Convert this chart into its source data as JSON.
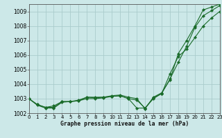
{
  "title": "Graphe pression niveau de la mer (hPa)",
  "background_color": "#cce8e8",
  "grid_color": "#aacccc",
  "line_color": "#1a6b2a",
  "xlim": [
    0,
    23
  ],
  "ylim": [
    1002,
    1009.5
  ],
  "xticks": [
    0,
    1,
    2,
    3,
    4,
    5,
    6,
    7,
    8,
    9,
    10,
    11,
    12,
    13,
    14,
    15,
    16,
    17,
    18,
    19,
    20,
    21,
    22,
    23
  ],
  "yticks": [
    1002,
    1003,
    1004,
    1005,
    1006,
    1007,
    1008,
    1009
  ],
  "series": [
    [
      1003.0,
      1002.6,
      1002.4,
      1002.4,
      1002.8,
      1002.8,
      1002.9,
      1003.1,
      1003.1,
      1003.1,
      1003.2,
      1003.25,
      1003.1,
      1003.0,
      1002.3,
      1003.1,
      1003.4,
      1004.3,
      1006.1,
      1007.0,
      1008.0,
      1009.1,
      1009.3,
      1009.5
    ],
    [
      1003.0,
      1002.6,
      1002.4,
      1002.5,
      1002.8,
      1002.8,
      1002.85,
      1003.1,
      1003.05,
      1003.1,
      1003.15,
      1003.2,
      1003.0,
      1002.9,
      1002.35,
      1003.05,
      1003.35,
      1004.35,
      1005.5,
      1006.6,
      1007.9,
      1008.7,
      1009.05,
      1009.4
    ],
    [
      1003.0,
      1002.55,
      1002.35,
      1002.35,
      1002.75,
      1002.8,
      1002.85,
      1003.0,
      1003.0,
      1003.05,
      1003.15,
      1003.2,
      1003.0,
      1002.35,
      1002.35,
      1003.0,
      1003.35,
      1004.7,
      1005.9,
      1006.4,
      1007.2,
      1008.0,
      1008.55,
      1009.0
    ]
  ]
}
